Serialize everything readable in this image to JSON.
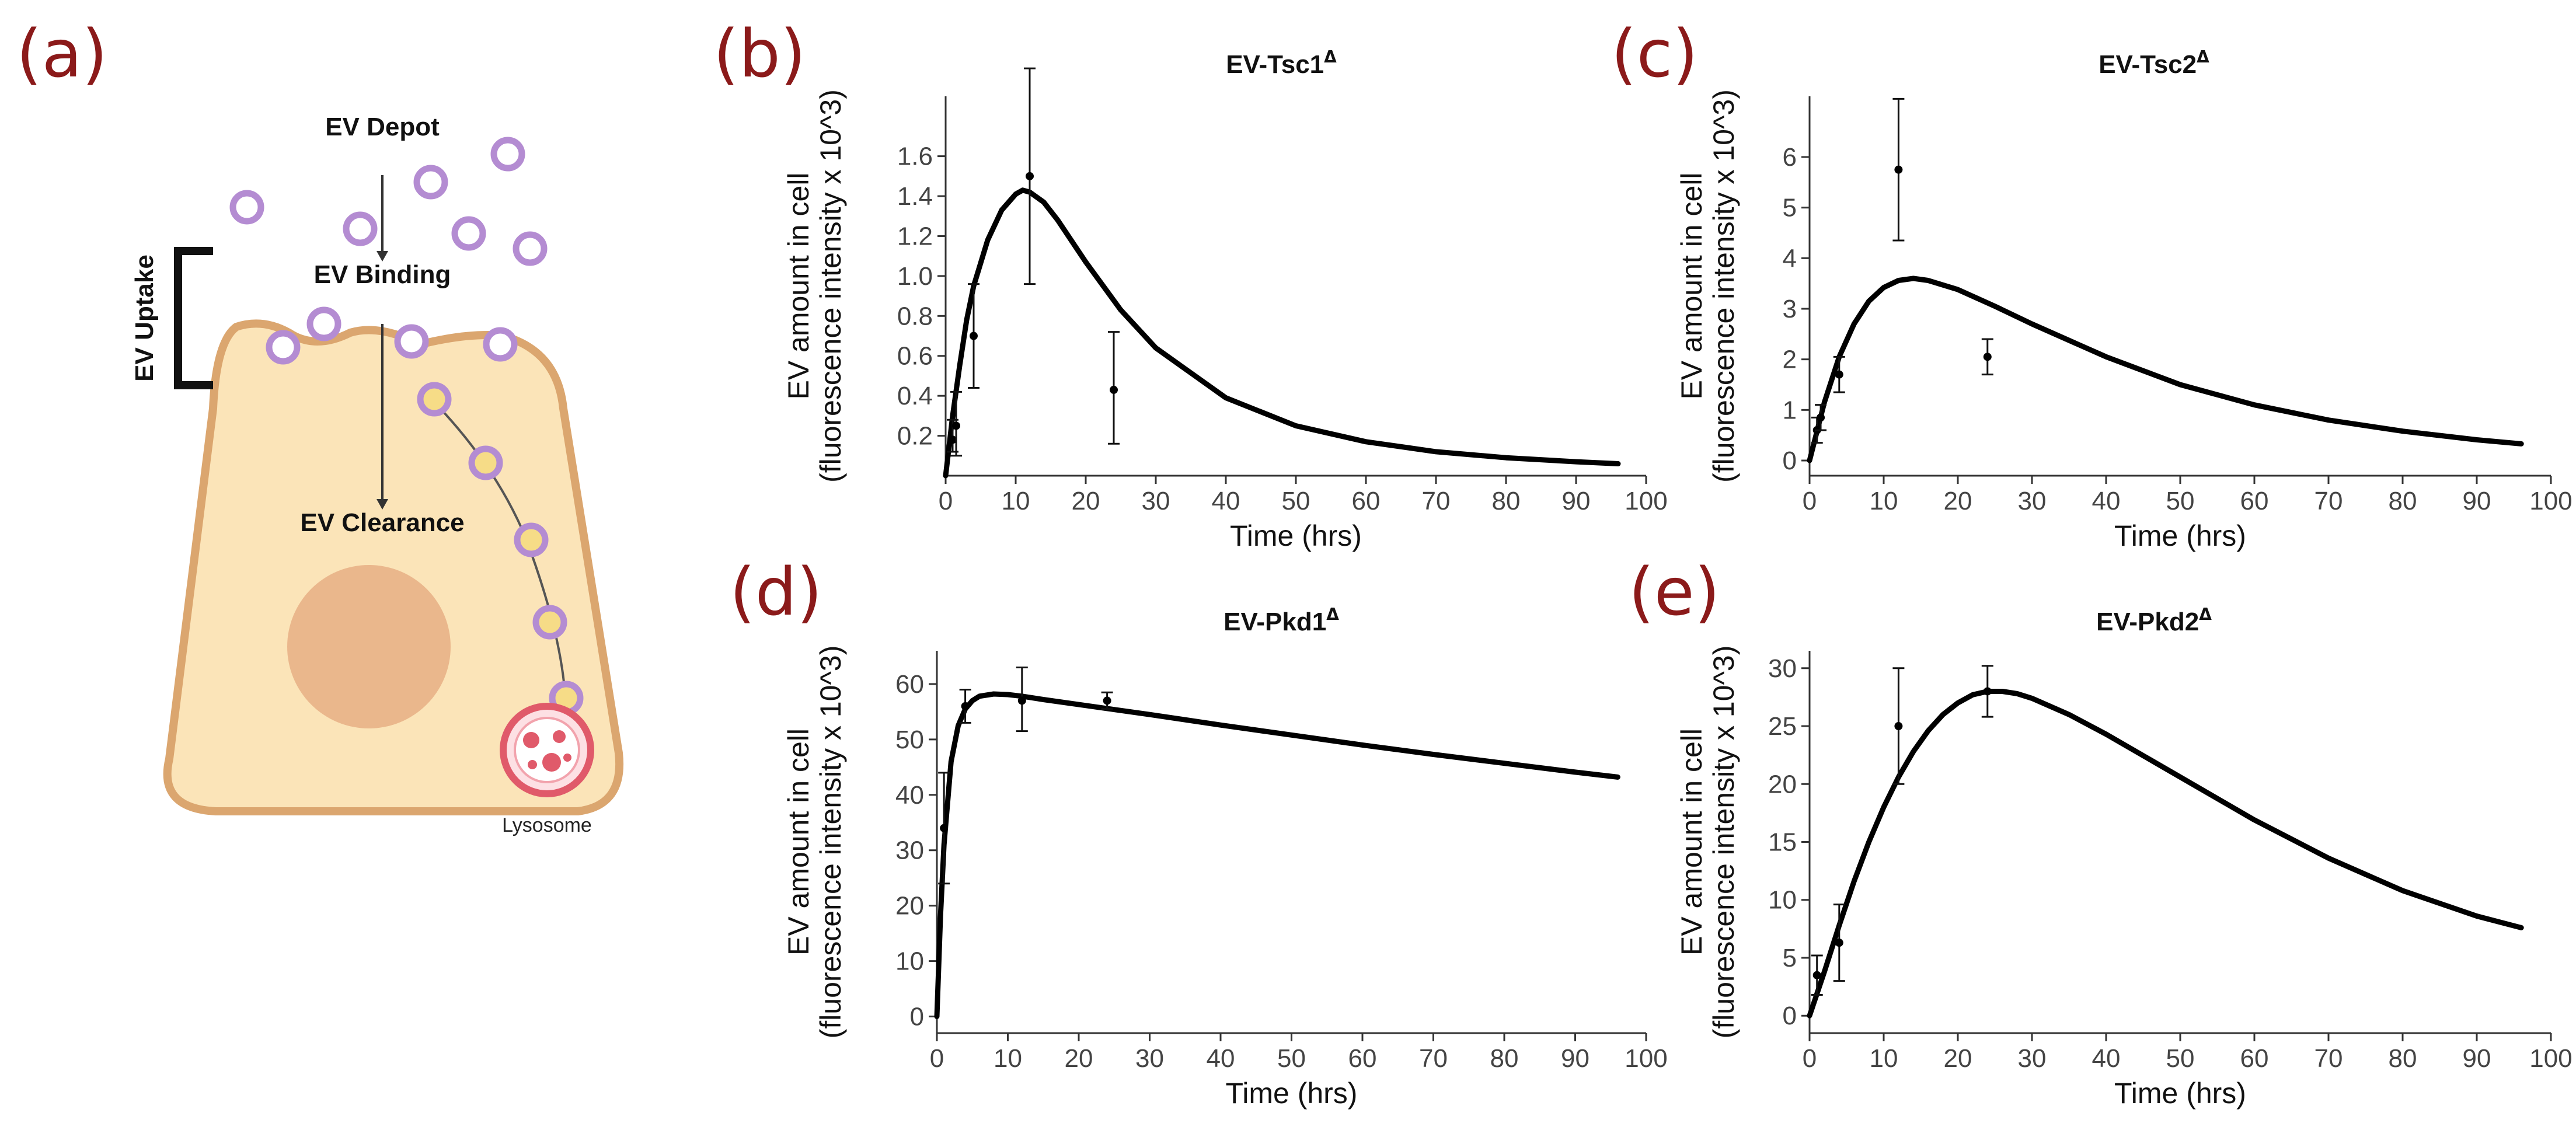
{
  "panels": {
    "a": "(a)",
    "b": "(b)",
    "c": "(c)",
    "d": "(d)",
    "e": "(e)"
  },
  "diagram": {
    "depot": "EV Depot",
    "binding": "EV Binding",
    "uptake": "EV Uptake",
    "clearance": "EV Clearance",
    "lysosome": "Lysosome"
  },
  "colors": {
    "panel_label": "#8b1a1a",
    "cell_fill": "#fbe4b8",
    "cell_stroke": "#dba66f",
    "nucleus": "#eab78c",
    "ev_ring": "#b48cd2",
    "lysosome": "#e05a6a"
  },
  "chart_data": [
    {
      "panel": "b",
      "type": "line",
      "title": "EV-Tsc1",
      "title_sup": "Δ",
      "xlabel": "Time (hrs)",
      "ylabel1": "EV amount in cell",
      "ylabel2": "(fluorescence intensity x 10^3)",
      "xlim": [
        0,
        100
      ],
      "ylim": [
        0,
        1.9
      ],
      "xticks": [
        0,
        10,
        20,
        30,
        40,
        50,
        60,
        70,
        80,
        90,
        100
      ],
      "yticks": [
        0.2,
        0.4,
        0.6,
        0.8,
        1.0,
        1.2,
        1.4,
        1.6
      ],
      "ytick_labels": [
        "0.2",
        "0.4",
        "0.6",
        "0.8",
        "1.0",
        "1.2",
        "1.4",
        "1.6"
      ],
      "points": [
        {
          "x": 1,
          "y": 0.18,
          "lo": 0.12,
          "hi": 0.28
        },
        {
          "x": 1.5,
          "y": 0.25,
          "lo": 0.1,
          "hi": 0.42
        },
        {
          "x": 4,
          "y": 0.7,
          "lo": 0.44,
          "hi": 0.96
        },
        {
          "x": 12,
          "y": 1.5,
          "lo": 0.96,
          "hi": 2.04
        },
        {
          "x": 24,
          "y": 0.43,
          "lo": 0.16,
          "hi": 0.72
        }
      ],
      "curve": {
        "x": [
          0,
          1,
          2,
          3,
          4,
          6,
          8,
          10,
          11,
          12,
          14,
          16,
          20,
          25,
          30,
          40,
          50,
          60,
          70,
          80,
          90,
          96
        ],
        "y": [
          0,
          0.3,
          0.55,
          0.78,
          0.95,
          1.18,
          1.33,
          1.41,
          1.43,
          1.42,
          1.37,
          1.28,
          1.07,
          0.83,
          0.64,
          0.39,
          0.25,
          0.17,
          0.12,
          0.09,
          0.07,
          0.06
        ]
      }
    },
    {
      "panel": "c",
      "type": "line",
      "title": "EV-Tsc2",
      "title_sup": "Δ",
      "xlabel": "Time (hrs)",
      "ylabel1": "EV amount in cell",
      "ylabel2": "(fluorescence intensity x 10^3)",
      "xlim": [
        0,
        100
      ],
      "ylim": [
        -0.3,
        7.2
      ],
      "xticks": [
        0,
        10,
        20,
        30,
        40,
        50,
        60,
        70,
        80,
        90,
        100
      ],
      "yticks": [
        0,
        1,
        2,
        3,
        4,
        5,
        6
      ],
      "ytick_labels": [
        "0",
        "1",
        "2",
        "3",
        "4",
        "5",
        "6"
      ],
      "points": [
        {
          "x": 1,
          "y": 0.6,
          "lo": 0.35,
          "hi": 0.85
        },
        {
          "x": 1.5,
          "y": 0.85,
          "lo": 0.6,
          "hi": 1.1
        },
        {
          "x": 4,
          "y": 1.7,
          "lo": 1.35,
          "hi": 2.05
        },
        {
          "x": 12,
          "y": 5.75,
          "lo": 4.35,
          "hi": 7.15
        },
        {
          "x": 24,
          "y": 2.05,
          "lo": 1.7,
          "hi": 2.4
        }
      ],
      "curve": {
        "x": [
          0,
          2,
          4,
          6,
          8,
          10,
          12,
          14,
          16,
          20,
          25,
          30,
          40,
          50,
          60,
          70,
          80,
          90,
          96
        ],
        "y": [
          0,
          1.15,
          2.05,
          2.7,
          3.15,
          3.42,
          3.56,
          3.6,
          3.56,
          3.38,
          3.05,
          2.7,
          2.05,
          1.5,
          1.1,
          0.8,
          0.58,
          0.41,
          0.33
        ]
      }
    },
    {
      "panel": "d",
      "type": "line",
      "title": "EV-Pkd1",
      "title_sup": "Δ",
      "xlabel": "Time (hrs)",
      "ylabel1": "EV amount in cell",
      "ylabel2": "(fluorescence intensity x 10^3)",
      "xlim": [
        0,
        100
      ],
      "ylim": [
        -3,
        66
      ],
      "xticks": [
        0,
        10,
        20,
        30,
        40,
        50,
        60,
        70,
        80,
        90,
        100
      ],
      "yticks": [
        0,
        10,
        20,
        30,
        40,
        50,
        60
      ],
      "ytick_labels": [
        "0",
        "10",
        "20",
        "30",
        "40",
        "50",
        "60"
      ],
      "points": [
        {
          "x": 1,
          "y": 34,
          "lo": 24,
          "hi": 44
        },
        {
          "x": 4,
          "y": 56,
          "lo": 53,
          "hi": 59
        },
        {
          "x": 12,
          "y": 57,
          "lo": 51.5,
          "hi": 63
        },
        {
          "x": 24,
          "y": 57,
          "lo": 55.5,
          "hi": 58.5
        }
      ],
      "curve": {
        "x": [
          0,
          0.5,
          1,
          2,
          3,
          4,
          5,
          6,
          8,
          10,
          12,
          15,
          20,
          30,
          40,
          50,
          60,
          70,
          80,
          90,
          96
        ],
        "y": [
          0,
          18,
          31,
          46,
          52.5,
          55.5,
          57,
          57.8,
          58.2,
          58.1,
          57.8,
          57.2,
          56.3,
          54.5,
          52.6,
          50.8,
          49.0,
          47.3,
          45.7,
          44.1,
          43.2
        ]
      }
    },
    {
      "panel": "e",
      "type": "line",
      "title": "EV-Pkd2",
      "title_sup": "Δ",
      "xlabel": "Time (hrs)",
      "ylabel1": "EV amount in cell",
      "ylabel2": "(fluorescence intensity x 10^3)",
      "xlim": [
        0,
        100
      ],
      "ylim": [
        -1.5,
        31.5
      ],
      "xticks": [
        0,
        10,
        20,
        30,
        40,
        50,
        60,
        70,
        80,
        90,
        100
      ],
      "yticks": [
        0,
        5,
        10,
        15,
        20,
        25,
        30
      ],
      "ytick_labels": [
        "0",
        "5",
        "10",
        "15",
        "20",
        "25",
        "30"
      ],
      "points": [
        {
          "x": 1,
          "y": 3.5,
          "lo": 1.8,
          "hi": 5.2
        },
        {
          "x": 4,
          "y": 6.3,
          "lo": 3.0,
          "hi": 9.6
        },
        {
          "x": 12,
          "y": 25,
          "lo": 20,
          "hi": 30
        },
        {
          "x": 24,
          "y": 28,
          "lo": 25.8,
          "hi": 30.2
        }
      ],
      "curve": {
        "x": [
          0,
          2,
          4,
          6,
          8,
          10,
          12,
          14,
          16,
          18,
          20,
          22,
          24,
          26,
          28,
          30,
          35,
          40,
          50,
          60,
          70,
          80,
          90,
          96
        ],
        "y": [
          0,
          3.8,
          7.8,
          11.6,
          15.0,
          18.0,
          20.6,
          22.8,
          24.6,
          26.0,
          27.0,
          27.7,
          28.0,
          28.0,
          27.8,
          27.4,
          26.0,
          24.3,
          20.6,
          16.9,
          13.6,
          10.8,
          8.6,
          7.6
        ]
      }
    }
  ]
}
